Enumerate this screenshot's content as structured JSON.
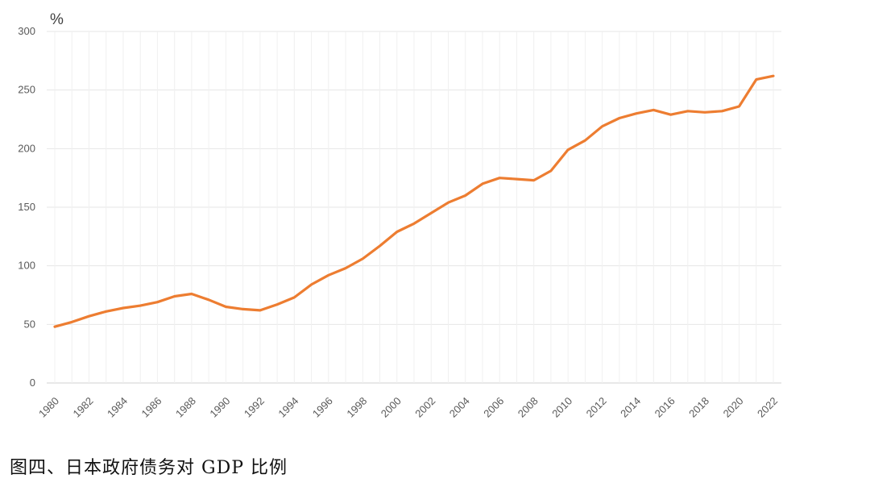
{
  "caption": "图四、日本政府债务对 GDP 比例",
  "chart_data": {
    "type": "line",
    "ylabel": "%",
    "ylim": [
      0,
      300
    ],
    "yticks": [
      0,
      50,
      100,
      150,
      200,
      250,
      300
    ],
    "xlim": [
      1980,
      2022
    ],
    "xticks": [
      1980,
      1982,
      1984,
      1986,
      1988,
      1990,
      1992,
      1994,
      1996,
      1998,
      2000,
      2002,
      2004,
      2006,
      2008,
      2010,
      2012,
      2014,
      2016,
      2018,
      2020,
      2022
    ],
    "grid": true,
    "line_color": "#ED7D31",
    "x": [
      1980,
      1981,
      1982,
      1983,
      1984,
      1985,
      1986,
      1987,
      1988,
      1989,
      1990,
      1991,
      1992,
      1993,
      1994,
      1995,
      1996,
      1997,
      1998,
      1999,
      2000,
      2001,
      2002,
      2003,
      2004,
      2005,
      2006,
      2007,
      2008,
      2009,
      2010,
      2011,
      2012,
      2013,
      2014,
      2015,
      2016,
      2017,
      2018,
      2019,
      2020,
      2021,
      2022
    ],
    "values": [
      48,
      52,
      57,
      61,
      64,
      66,
      69,
      74,
      76,
      71,
      65,
      63,
      62,
      67,
      73,
      84,
      92,
      98,
      106,
      117,
      129,
      136,
      145,
      154,
      160,
      170,
      175,
      174,
      173,
      181,
      199,
      207,
      219,
      226,
      230,
      233,
      229,
      232,
      231,
      232,
      236,
      259,
      262
    ]
  }
}
